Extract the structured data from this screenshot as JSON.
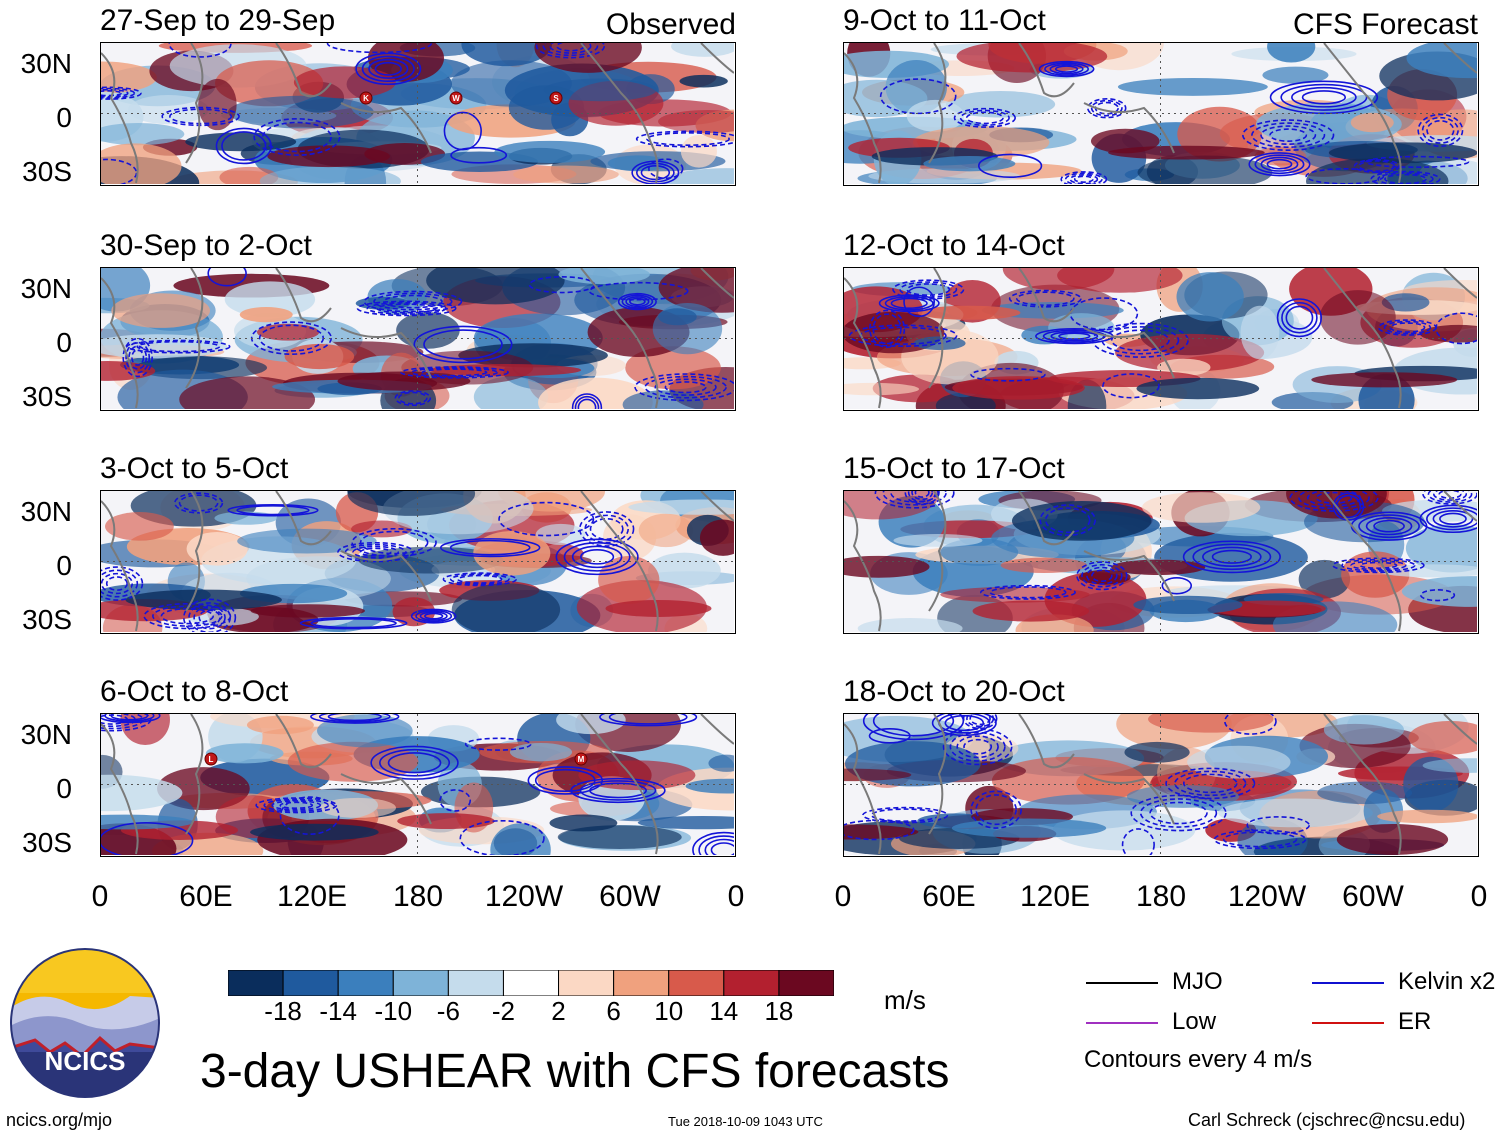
{
  "chart_data": {
    "type": "heatmap",
    "title": "3-day USHEAR with CFS forecasts",
    "units": "m/s",
    "variable": "USHEAR",
    "contour_note": "Contours every 4 m/s",
    "observed_label": "Observed",
    "forecast_label": "CFS Forecast",
    "y_ticks": [
      "30N",
      "0",
      "30S"
    ],
    "x_ticks": [
      "0",
      "60E",
      "120E",
      "180",
      "120W",
      "60W",
      "0"
    ],
    "panels_observed": [
      {
        "title": "27-Sep to 29-Sep",
        "storms": [
          "K",
          "W",
          "S"
        ]
      },
      {
        "title": "30-Sep to 2-Oct",
        "storms": []
      },
      {
        "title": "3-Oct to 5-Oct",
        "storms": []
      },
      {
        "title": "6-Oct to 8-Oct",
        "storms": [
          "L",
          "M"
        ]
      }
    ],
    "panels_forecast": [
      {
        "title": "9-Oct to 11-Oct"
      },
      {
        "title": "12-Oct to 14-Oct"
      },
      {
        "title": "15-Oct to 17-Oct"
      },
      {
        "title": "18-Oct to 20-Oct"
      }
    ],
    "colorbar": {
      "ticks": [
        "-18",
        "-14",
        "-10",
        "-6",
        "-2",
        "2",
        "6",
        "10",
        "14",
        "18"
      ],
      "colors": [
        "#0a2d5c",
        "#1f5a9e",
        "#3b7fbd",
        "#7eb3d8",
        "#c5dcec",
        "#ffffff",
        "#fbd8c4",
        "#f0a17e",
        "#d85a4b",
        "#b3202f",
        "#6b0820"
      ]
    },
    "legend": [
      {
        "label": "MJO",
        "color": "#000000"
      },
      {
        "label": "Kelvin x2",
        "color": "#1010d0"
      },
      {
        "label": "Low",
        "color": "#a030c0"
      },
      {
        "label": "ER",
        "color": "#d01010"
      }
    ]
  },
  "logo": {
    "text": "NCICS"
  },
  "footer": {
    "left": "ncics.org/mjo",
    "center": "Tue 2018-10-09 1043 UTC",
    "right": "Carl Schreck (cjschrec@ncsu.edu)"
  }
}
